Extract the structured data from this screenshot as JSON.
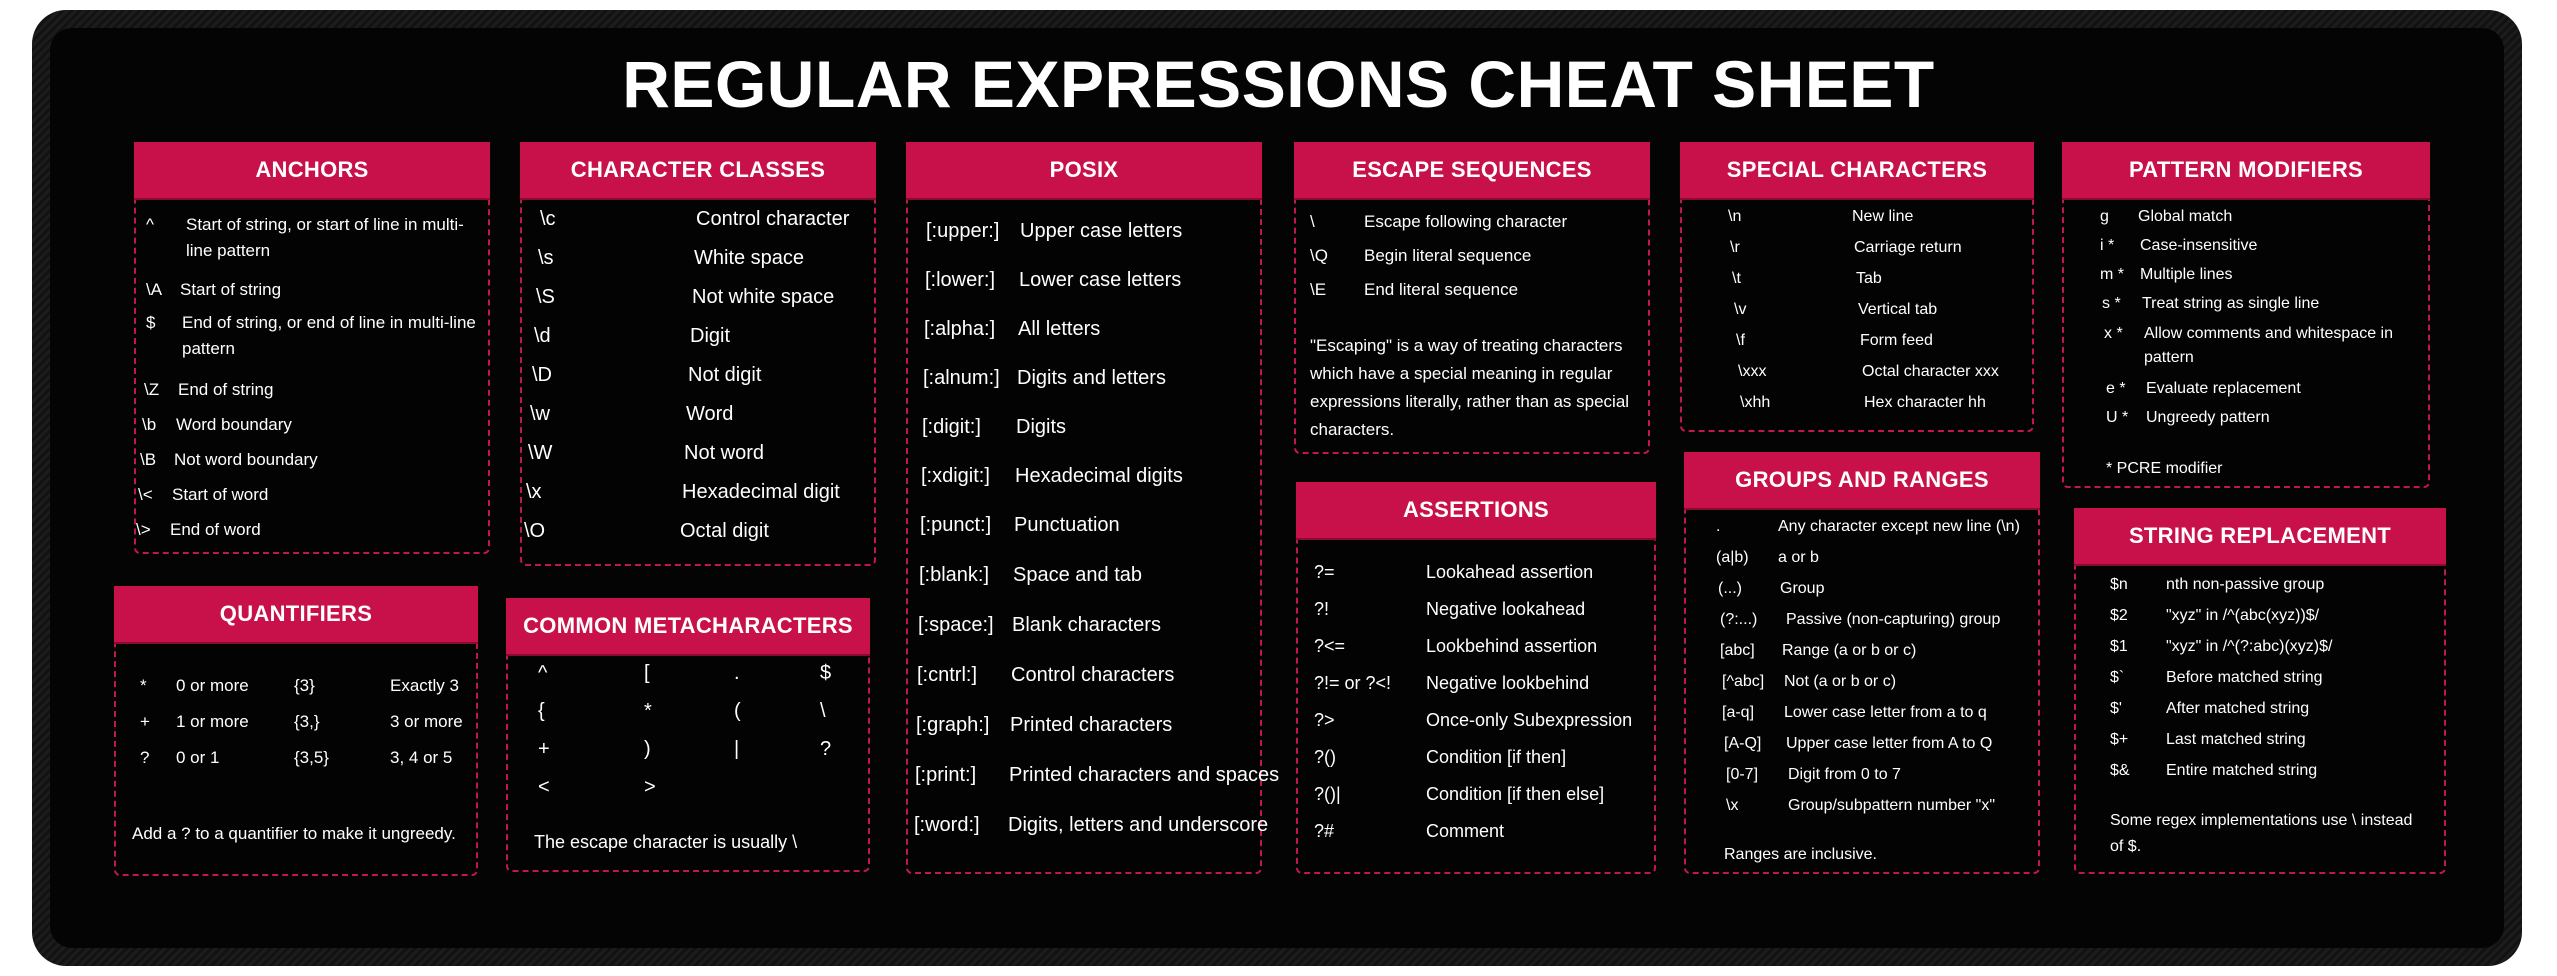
{
  "title": "REGULAR EXPRESSIONS CHEAT SHEET",
  "colors": {
    "accent": "#c8104a",
    "background": "#040404",
    "text": "#ffffff"
  },
  "anchors": {
    "header": "ANCHORS",
    "items": [
      {
        "k": "^",
        "d": "Start of string, or start of line in multi-line pattern"
      },
      {
        "k": "\\A",
        "d": "Start of string"
      },
      {
        "k": "$",
        "d": "End of string, or end of line in multi-line pattern"
      },
      {
        "k": "\\Z",
        "d": "End of string"
      },
      {
        "k": "\\b",
        "d": "Word boundary"
      },
      {
        "k": "\\B",
        "d": "Not word boundary"
      },
      {
        "k": "\\<",
        "d": "Start of word"
      },
      {
        "k": "\\>",
        "d": "End of word"
      }
    ]
  },
  "character_classes": {
    "header": "CHARACTER CLASSES",
    "items": [
      {
        "k": "\\c",
        "d": "Control character"
      },
      {
        "k": "\\s",
        "d": "White space"
      },
      {
        "k": "\\S",
        "d": "Not white space"
      },
      {
        "k": "\\d",
        "d": "Digit"
      },
      {
        "k": "\\D",
        "d": "Not digit"
      },
      {
        "k": "\\w",
        "d": "Word"
      },
      {
        "k": "\\W",
        "d": "Not word"
      },
      {
        "k": "\\x",
        "d": "Hexadecimal digit"
      },
      {
        "k": "\\O",
        "d": "Octal digit"
      }
    ]
  },
  "posix": {
    "header": "POSIX",
    "items": [
      {
        "k": "[:upper:]",
        "d": "Upper case letters"
      },
      {
        "k": "[:lower:]",
        "d": "Lower case letters"
      },
      {
        "k": "[:alpha:]",
        "d": "All letters"
      },
      {
        "k": "[:alnum:]",
        "d": "Digits and letters"
      },
      {
        "k": "[:digit:]",
        "d": "Digits"
      },
      {
        "k": "[:xdigit:]",
        "d": "Hexadecimal digits"
      },
      {
        "k": "[:punct:]",
        "d": "Punctuation"
      },
      {
        "k": "[:blank:]",
        "d": "Space and tab"
      },
      {
        "k": "[:space:]",
        "d": "Blank characters"
      },
      {
        "k": "[:cntrl:]",
        "d": "Control characters"
      },
      {
        "k": "[:graph:]",
        "d": "Printed characters"
      },
      {
        "k": "[:print:]",
        "d": "Printed characters and spaces"
      },
      {
        "k": "[:word:]",
        "d": "Digits, letters and underscore"
      }
    ]
  },
  "escape_sequences": {
    "header": "ESCAPE SEQUENCES",
    "items": [
      {
        "k": "\\",
        "d": "Escape following character"
      },
      {
        "k": "\\Q",
        "d": "Begin literal sequence"
      },
      {
        "k": "\\E",
        "d": "End literal sequence"
      }
    ],
    "note": "\"Escaping\" is a way of treating characters which have a special meaning in regular expressions literally, rather than as special characters."
  },
  "special_characters": {
    "header": "SPECIAL CHARACTERS",
    "items": [
      {
        "k": "\\n",
        "d": "New line"
      },
      {
        "k": "\\r",
        "d": "Carriage return"
      },
      {
        "k": "\\t",
        "d": "Tab"
      },
      {
        "k": "\\v",
        "d": "Vertical tab"
      },
      {
        "k": "\\f",
        "d": "Form feed"
      },
      {
        "k": "\\xxx",
        "d": "Octal character xxx"
      },
      {
        "k": "\\xhh",
        "d": "Hex character hh"
      }
    ]
  },
  "pattern_modifiers": {
    "header": "PATTERN MODIFIERS",
    "items": [
      {
        "k": "g",
        "d": "Global match"
      },
      {
        "k": "i *",
        "d": "Case-insensitive"
      },
      {
        "k": "m *",
        "d": "Multiple lines"
      },
      {
        "k": "s *",
        "d": "Treat string as single line"
      },
      {
        "k": "x *",
        "d": "Allow comments and whitespace in pattern"
      },
      {
        "k": "e *",
        "d": "Evaluate replacement"
      },
      {
        "k": "U *",
        "d": "Ungreedy pattern"
      }
    ],
    "note": "* PCRE modifier"
  },
  "quantifiers": {
    "header": "QUANTIFIERS",
    "rows": [
      {
        "k1": "*",
        "d1": "0 or more",
        "k2": "{3}",
        "d2": "Exactly 3"
      },
      {
        "k1": "+",
        "d1": "1 or more",
        "k2": "{3,}",
        "d2": "3 or more"
      },
      {
        "k1": "?",
        "d1": "0 or 1",
        "k2": "{3,5}",
        "d2": "3, 4 or 5"
      }
    ],
    "note": "Add a ? to a quantifier to make it ungreedy."
  },
  "metacharacters": {
    "header": "COMMON METACHARACTERS",
    "grid": [
      [
        "^",
        "[",
        ".",
        "$"
      ],
      [
        "{",
        "*",
        "(",
        "\\"
      ],
      [
        "+",
        ")",
        "|",
        "?"
      ],
      [
        "<",
        ">",
        "",
        ""
      ]
    ],
    "note": "The escape character is usually \\"
  },
  "assertions": {
    "header": "ASSERTIONS",
    "items": [
      {
        "k": "?=",
        "d": "Lookahead assertion"
      },
      {
        "k": "?!",
        "d": "Negative lookahead"
      },
      {
        "k": "?<=",
        "d": "Lookbehind assertion"
      },
      {
        "k": "?!= or ?<!",
        "d": "Negative lookbehind"
      },
      {
        "k": "?>",
        "d": "Once-only Subexpression"
      },
      {
        "k": "?()",
        "d": "Condition [if then]"
      },
      {
        "k": "?()|",
        "d": "Condition [if then else]"
      },
      {
        "k": "?#",
        "d": "Comment"
      }
    ]
  },
  "groups_ranges": {
    "header": "GROUPS AND RANGES",
    "items": [
      {
        "k": ".",
        "d": "Any character except new line (\\n)"
      },
      {
        "k": "(a|b)",
        "d": "a or b"
      },
      {
        "k": "(...)",
        "d": "Group"
      },
      {
        "k": "(?:...)",
        "d": "Passive (non-capturing) group"
      },
      {
        "k": "[abc]",
        "d": "Range (a or b or c)"
      },
      {
        "k": "[^abc]",
        "d": "Not (a or b or c)"
      },
      {
        "k": "[a-q]",
        "d": "Lower case letter from a to q"
      },
      {
        "k": "[A-Q]",
        "d": "Upper case letter from A to Q"
      },
      {
        "k": "[0-7]",
        "d": "Digit from 0 to 7"
      },
      {
        "k": "\\x",
        "d": "Group/subpattern number \"x\""
      }
    ],
    "note": "Ranges are inclusive."
  },
  "string_replacement": {
    "header": "STRING REPLACEMENT",
    "items": [
      {
        "k": "$n",
        "d": "nth non-passive group"
      },
      {
        "k": "$2",
        "d": "\"xyz\" in /^(abc(xyz))$/"
      },
      {
        "k": "$1",
        "d": "\"xyz\" in /^(?:abc)(xyz)$/"
      },
      {
        "k": "$`",
        "d": "Before matched string"
      },
      {
        "k": "$'",
        "d": "After matched string"
      },
      {
        "k": "$+",
        "d": "Last matched string"
      },
      {
        "k": "$&",
        "d": "Entire matched string"
      }
    ],
    "note": "Some regex implementations use \\ instead of $."
  }
}
